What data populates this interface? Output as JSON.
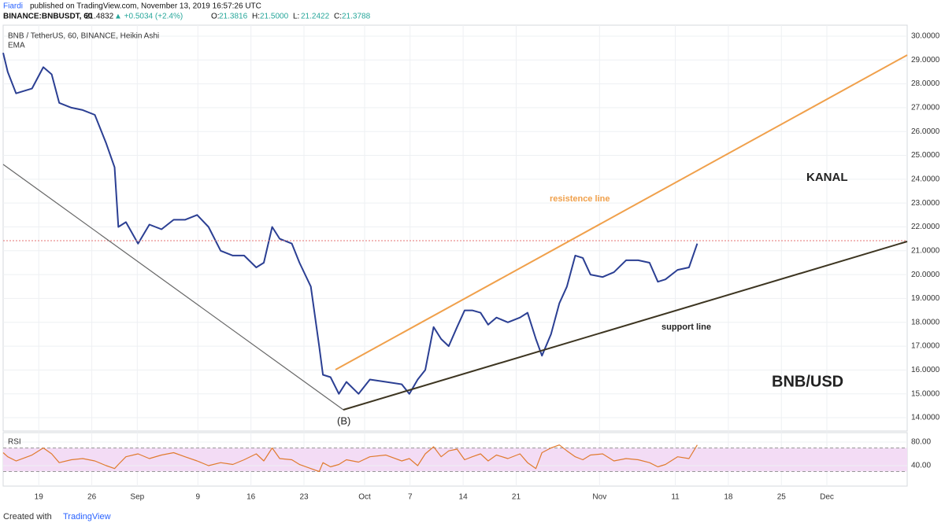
{
  "header": {
    "publisher": "Fiardi",
    "published": "published on TradingView.com, November 13, 2019 16:57:26 UTC",
    "symbol": "BINANCE:BNBUSDT, 60",
    "last": "21.4832",
    "change": "▲ +0.5034 (+2.4%)",
    "ohlc": [
      "O:",
      "21.3816",
      "H:",
      "21.5000",
      "L:",
      "21.2422",
      "C:",
      "21.3788"
    ]
  },
  "footer": {
    "created": "Created with",
    "brand": "TradingView"
  },
  "chart_data": [
    {
      "type": "line",
      "title": "BNB / TetherUS, 60, BINANCE, Heikin Ashi",
      "x": [
        -4.7,
        -4.1,
        -3.0,
        -0.9,
        0.6,
        1.7,
        2.7,
        4.3,
        5.8,
        7.4,
        8.9,
        10.0,
        10.5,
        11.5,
        13.1,
        14.6,
        16.2,
        17.8,
        19.3,
        20.9,
        22.4,
        24.0,
        25.6,
        27.1,
        28.7,
        29.7,
        30.8,
        31.8,
        33.4,
        34.4,
        35.9,
        37.0,
        37.5,
        38.5,
        39.6,
        40.6,
        42.2,
        43.7,
        45.8,
        47.9,
        48.9,
        50.0,
        51.0,
        52.1,
        53.1,
        54.1,
        55.2,
        56.2,
        57.2,
        58.3,
        59.3,
        60.4,
        61.9,
        63.5,
        64.5,
        65.6,
        66.4,
        67.6,
        68.7,
        69.7,
        70.8,
        71.8,
        72.8,
        74.4,
        75.9,
        77.5,
        79.1,
        80.6,
        81.7,
        82.7,
        84.3,
        85.8,
        86.9
      ],
      "series": [
        {
          "name": "EMA",
          "color": "#2b3f93",
          "values": [
            29.3,
            28.5,
            27.6,
            27.8,
            28.7,
            28.4,
            27.2,
            27.0,
            26.9,
            26.7,
            25.5,
            24.5,
            22.0,
            22.2,
            21.3,
            22.1,
            21.9,
            22.3,
            22.3,
            22.5,
            22.0,
            21.0,
            20.8,
            20.8,
            20.3,
            20.5,
            22.0,
            21.5,
            21.3,
            20.5,
            19.5,
            17.0,
            15.8,
            15.7,
            15.0,
            15.5,
            15.0,
            15.6,
            15.5,
            15.4,
            15.0,
            15.6,
            16.0,
            17.8,
            17.3,
            17.0,
            17.8,
            18.5,
            18.5,
            18.4,
            17.9,
            18.2,
            18.0,
            18.2,
            18.4,
            17.3,
            16.6,
            17.5,
            18.8,
            19.5,
            20.8,
            20.7,
            20.0,
            19.9,
            20.1,
            20.6,
            20.6,
            20.5,
            19.7,
            19.8,
            20.2,
            20.3,
            21.3
          ]
        }
      ],
      "xlim": [
        -4.7,
        114.6
      ],
      "xticks": [
        {
          "value": 0,
          "label": "19"
        },
        {
          "value": 7,
          "label": "26"
        },
        {
          "value": 13,
          "label": "Sep"
        },
        {
          "value": 21,
          "label": "9"
        },
        {
          "value": 28,
          "label": "16"
        },
        {
          "value": 35,
          "label": "23"
        },
        {
          "value": 43,
          "label": "Oct"
        },
        {
          "value": 49,
          "label": "7"
        },
        {
          "value": 56,
          "label": "14"
        },
        {
          "value": 63,
          "label": "21"
        },
        {
          "value": 74,
          "label": "Nov"
        },
        {
          "value": 84,
          "label": "11"
        },
        {
          "value": 91,
          "label": "18"
        },
        {
          "value": 98,
          "label": "25"
        },
        {
          "value": 104,
          "label": "Dec"
        }
      ],
      "ylim": [
        13.44,
        30.46
      ],
      "yticks": [
        {
          "value": 14,
          "label": "14.0000"
        },
        {
          "value": 15,
          "label": "15.0000"
        },
        {
          "value": 16,
          "label": "16.0000"
        },
        {
          "value": 17,
          "label": "17.0000"
        },
        {
          "value": 18,
          "label": "18.0000"
        },
        {
          "value": 19,
          "label": "19.0000"
        },
        {
          "value": 20,
          "label": "20.0000"
        },
        {
          "value": 21,
          "label": "21.0000"
        },
        {
          "value": 22,
          "label": "22.0000"
        },
        {
          "value": 23,
          "label": "23.0000"
        },
        {
          "value": 24,
          "label": "24.0000"
        },
        {
          "value": 25,
          "label": "25.0000"
        },
        {
          "value": 26,
          "label": "26.0000"
        },
        {
          "value": 27,
          "label": "27.0000"
        },
        {
          "value": 28,
          "label": "28.0000"
        },
        {
          "value": 29,
          "label": "29.0000"
        },
        {
          "value": 30,
          "label": "30.0000"
        }
      ],
      "grid": true,
      "annotations": [
        "resistence line",
        "support line",
        "KANAL",
        "BNB/USD",
        "(B)"
      ]
    },
    {
      "type": "line",
      "title": "RSI",
      "series": [
        {
          "color": "#e07b2f",
          "values": [
            62,
            55,
            48,
            58,
            70,
            60,
            45,
            50,
            52,
            48,
            40,
            35,
            42,
            55,
            60,
            52,
            58,
            62,
            55,
            48,
            40,
            45,
            42,
            50,
            60,
            48,
            70,
            52,
            50,
            42,
            35,
            30,
            45,
            38,
            42,
            50,
            46,
            55,
            58,
            48,
            52,
            40,
            60,
            72,
            55,
            65,
            68,
            50,
            55,
            60,
            48,
            58,
            52,
            60,
            45,
            35,
            62,
            70,
            75,
            65,
            55,
            50,
            58,
            60,
            48,
            52,
            50,
            45,
            38,
            42,
            55,
            52,
            75
          ]
        }
      ],
      "ylim": [
        5.3,
        96
      ],
      "yticks": [
        {
          "value": 40,
          "label": "40.00"
        },
        {
          "value": 80,
          "label": "80.00"
        }
      ],
      "band": [
        30,
        70
      ],
      "band_color": "#f3dcf5",
      "grid": true
    }
  ]
}
